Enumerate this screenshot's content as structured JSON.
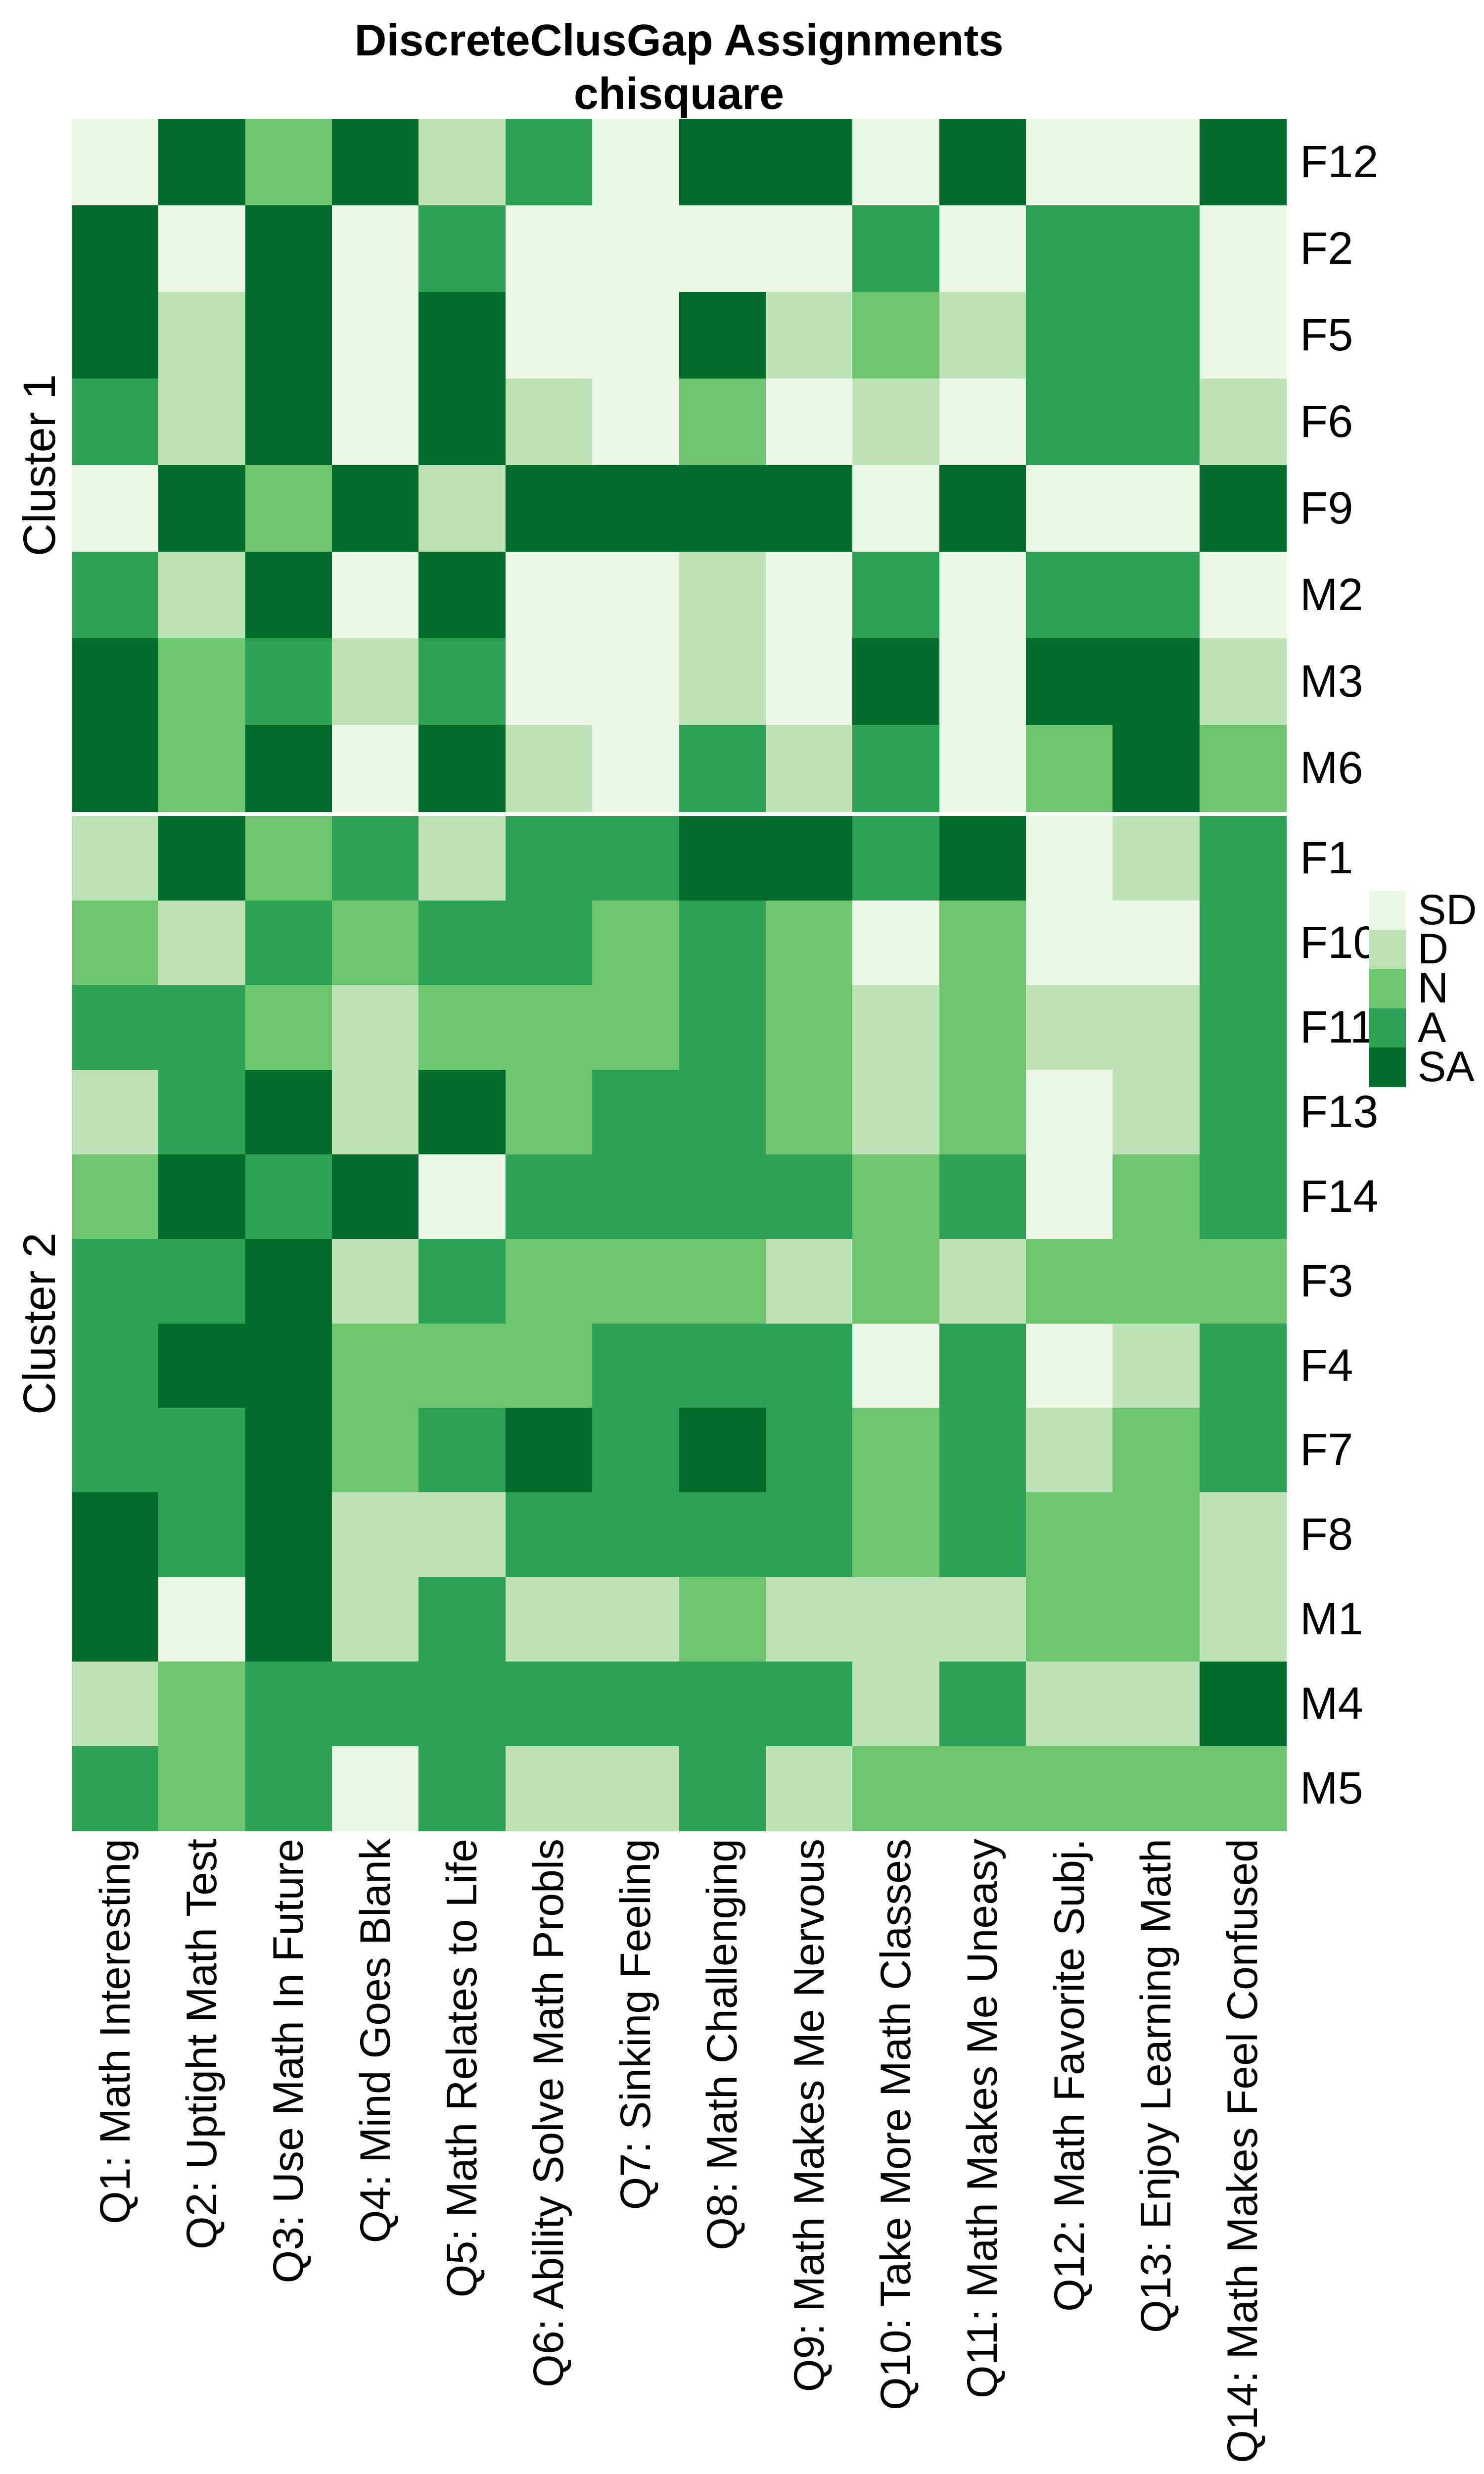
{
  "title": {
    "line1": "DiscreteClusGap Assignments",
    "line2": "chisquare"
  },
  "chart_data": {
    "type": "heatmap",
    "title": "DiscreteClusGap Assignments",
    "subtitle": "chisquare",
    "value_scale": [
      "SD",
      "D",
      "N",
      "A",
      "SA"
    ],
    "scale_colors": {
      "SD": "#EBF6E7",
      "D": "#BDE3B6",
      "N": "#6FC470",
      "A": "#2DA155",
      "SA": "#006B2B"
    },
    "legend_labels": [
      "SD",
      "D",
      "N",
      "A",
      "SA"
    ],
    "legend_position": "right",
    "grid": "off",
    "columns": [
      "Q1: Math Interesting",
      "Q2: Uptight Math Test",
      "Q3: Use Math In Future",
      "Q4: Mind Goes Blank",
      "Q5: Math Relates to Life",
      "Q6: Ability Solve Math Probls",
      "Q7: Sinking Feeling",
      "Q8: Math Challenging",
      "Q9: Math Makes Me Nervous",
      "Q10: Take More Math Classes",
      "Q11: Math Makes Me Uneasy",
      "Q12: Math Favorite Subj.",
      "Q13: Enjoy Learning Math",
      "Q14: Math Makes Feel Confused"
    ],
    "clusters": [
      {
        "name": "Cluster 1",
        "rows": [
          {
            "id": "F12",
            "values": [
              "SD",
              "SA",
              "N",
              "SA",
              "D",
              "A",
              "SD",
              "SA",
              "SA",
              "SD",
              "SA",
              "SD",
              "SD",
              "SA"
            ]
          },
          {
            "id": "F2",
            "values": [
              "SA",
              "SD",
              "SA",
              "SD",
              "A",
              "SD",
              "SD",
              "SD",
              "SD",
              "A",
              "SD",
              "A",
              "A",
              "SD"
            ]
          },
          {
            "id": "F5",
            "values": [
              "SA",
              "D",
              "SA",
              "SD",
              "SA",
              "SD",
              "SD",
              "SA",
              "D",
              "N",
              "D",
              "A",
              "A",
              "SD"
            ]
          },
          {
            "id": "F6",
            "values": [
              "A",
              "D",
              "SA",
              "SD",
              "SA",
              "D",
              "SD",
              "N",
              "SD",
              "D",
              "SD",
              "A",
              "A",
              "D"
            ]
          },
          {
            "id": "F9",
            "values": [
              "SD",
              "SA",
              "N",
              "SA",
              "D",
              "SA",
              "SA",
              "SA",
              "SA",
              "SD",
              "SA",
              "SD",
              "SD",
              "SA"
            ]
          },
          {
            "id": "M2",
            "values": [
              "A",
              "D",
              "SA",
              "SD",
              "SA",
              "SD",
              "SD",
              "D",
              "SD",
              "A",
              "SD",
              "A",
              "A",
              "SD"
            ]
          },
          {
            "id": "M3",
            "values": [
              "SA",
              "N",
              "A",
              "D",
              "A",
              "SD",
              "SD",
              "D",
              "SD",
              "SA",
              "SD",
              "SA",
              "SA",
              "D"
            ]
          },
          {
            "id": "M6",
            "values": [
              "SA",
              "N",
              "SA",
              "SD",
              "SA",
              "D",
              "SD",
              "A",
              "D",
              "A",
              "SD",
              "N",
              "SA",
              "N"
            ]
          }
        ]
      },
      {
        "name": "Cluster 2",
        "rows": [
          {
            "id": "F1",
            "values": [
              "D",
              "SA",
              "N",
              "A",
              "D",
              "A",
              "A",
              "SA",
              "SA",
              "A",
              "SA",
              "SD",
              "D",
              "A"
            ]
          },
          {
            "id": "F10",
            "values": [
              "N",
              "D",
              "A",
              "N",
              "A",
              "A",
              "N",
              "A",
              "N",
              "SD",
              "N",
              "SD",
              "SD",
              "A"
            ]
          },
          {
            "id": "F11",
            "values": [
              "A",
              "A",
              "N",
              "D",
              "N",
              "N",
              "N",
              "A",
              "N",
              "D",
              "N",
              "D",
              "D",
              "A"
            ]
          },
          {
            "id": "F13",
            "values": [
              "D",
              "A",
              "SA",
              "D",
              "SA",
              "N",
              "A",
              "A",
              "N",
              "D",
              "N",
              "SD",
              "D",
              "A"
            ]
          },
          {
            "id": "F14",
            "values": [
              "N",
              "SA",
              "A",
              "SA",
              "SD",
              "A",
              "A",
              "A",
              "A",
              "N",
              "A",
              "SD",
              "N",
              "A"
            ]
          },
          {
            "id": "F3",
            "values": [
              "A",
              "A",
              "SA",
              "D",
              "A",
              "N",
              "N",
              "N",
              "D",
              "N",
              "D",
              "N",
              "N",
              "N"
            ]
          },
          {
            "id": "F4",
            "values": [
              "A",
              "SA",
              "SA",
              "N",
              "N",
              "N",
              "A",
              "A",
              "A",
              "SD",
              "A",
              "SD",
              "D",
              "A"
            ]
          },
          {
            "id": "F7",
            "values": [
              "A",
              "A",
              "SA",
              "N",
              "A",
              "SA",
              "A",
              "SA",
              "A",
              "N",
              "A",
              "D",
              "N",
              "A"
            ]
          },
          {
            "id": "F8",
            "values": [
              "SA",
              "A",
              "SA",
              "D",
              "D",
              "A",
              "A",
              "A",
              "A",
              "N",
              "A",
              "N",
              "N",
              "D"
            ]
          },
          {
            "id": "M1",
            "values": [
              "SA",
              "SD",
              "SA",
              "D",
              "A",
              "D",
              "D",
              "N",
              "D",
              "D",
              "D",
              "N",
              "N",
              "D"
            ]
          },
          {
            "id": "M4",
            "values": [
              "D",
              "N",
              "A",
              "A",
              "A",
              "A",
              "A",
              "A",
              "A",
              "D",
              "A",
              "D",
              "D",
              "SA"
            ]
          },
          {
            "id": "M5",
            "values": [
              "A",
              "N",
              "A",
              "SD",
              "A",
              "D",
              "D",
              "A",
              "D",
              "N",
              "N",
              "N",
              "N",
              "N"
            ]
          }
        ]
      }
    ]
  }
}
